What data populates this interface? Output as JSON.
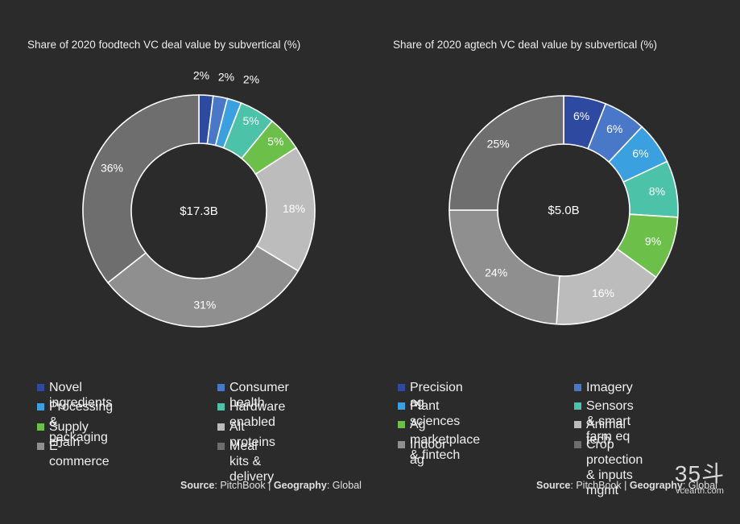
{
  "chart_data": [
    {
      "type": "pie",
      "title": "Share of 2020 foodtech VC deal value by subvertical (%)",
      "center_label": "$17.3B",
      "categories": [
        "Novel ingredients",
        "Consumer health",
        "Processing & packaging",
        "Hardware enabled",
        "Supply chain",
        "Alt proteins",
        "E-commerce",
        "Meal kits & delivery"
      ],
      "values": [
        2,
        2,
        2,
        5,
        5,
        18,
        31,
        36
      ],
      "data_labels": [
        "2%",
        "2%",
        "2%",
        "5%",
        "5%",
        "18%",
        "31%",
        "36%"
      ],
      "colors": [
        "#2d4aa0",
        "#4a78c8",
        "#3aa0e0",
        "#4cc3a8",
        "#6cc04a",
        "#bcbcbc",
        "#8f8f8f",
        "#6e6e6e"
      ],
      "legend_placement": "bottom"
    },
    {
      "type": "pie",
      "title": "Share of 2020 agtech VC deal value by subvertical (%)",
      "center_label": "$5.0B",
      "categories": [
        "Precision ag",
        "Imagery",
        "Plant sciences",
        "Sensors & smart farm eq",
        "Ag marketplace & fintech",
        "Animal tech",
        "Indoor ag",
        "Crop protection\n& inputs mgmt"
      ],
      "values": [
        6,
        6,
        6,
        8,
        9,
        16,
        24,
        25
      ],
      "data_labels": [
        "6%",
        "6%",
        "6%",
        "8%",
        "9%",
        "16%",
        "24%",
        "25%"
      ],
      "colors": [
        "#2d4aa0",
        "#4a78c8",
        "#3aa0e0",
        "#4cc3a8",
        "#6cc04a",
        "#bcbcbc",
        "#8f8f8f",
        "#6e6e6e"
      ],
      "legend_placement": "bottom"
    }
  ],
  "sources": [
    {
      "source_label": "Source",
      "source_value": "PitchBook",
      "separator": "|",
      "geo_label": "Geography",
      "geo_value": "Global"
    },
    {
      "source_label": "Source",
      "source_value": "PitchBook",
      "separator": "|",
      "geo_label": "Geography",
      "geo_value": "Global"
    }
  ],
  "watermark": {
    "logo": "35斗",
    "url": "vcearth.com"
  }
}
